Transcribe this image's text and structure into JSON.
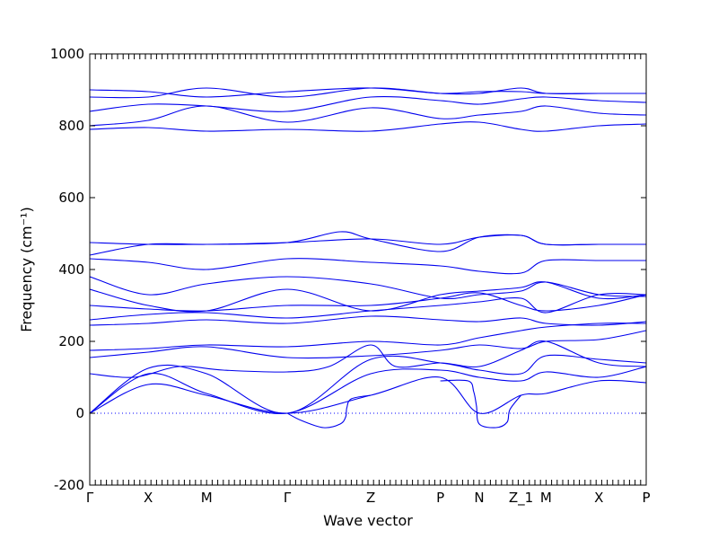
{
  "chart_data": {
    "type": "line",
    "xlabel": "Wave vector",
    "ylabel": "Frequency (cm⁻¹)",
    "ylim": [
      -200,
      1000
    ],
    "xlim": [
      0,
      10
    ],
    "yticks": [
      -200,
      0,
      200,
      400,
      600,
      800,
      1000
    ],
    "high_symmetry_points": [
      {
        "label": "Γ",
        "x": 0.0
      },
      {
        "label": "X",
        "x": 1.05
      },
      {
        "label": "M",
        "x": 2.1
      },
      {
        "label": "Γ",
        "x": 3.55
      },
      {
        "label": "Z",
        "x": 5.05
      },
      {
        "label": "P",
        "x": 6.3
      },
      {
        "label": "N",
        "x": 7.0
      },
      {
        "label": "Z_1",
        "x": 7.75
      },
      {
        "label": "M",
        "x": 8.2
      },
      {
        "label": "X",
        "x": 9.15
      },
      {
        "label": "P",
        "x": 10.0
      }
    ],
    "zero_line": {
      "y": 0,
      "style": "dotted"
    },
    "series": [
      {
        "x": [
          0,
          1.05,
          2.1,
          3.55,
          5.05,
          6.3,
          7.0,
          7.75,
          8.2,
          9.15,
          10
        ],
        "y": [
          0,
          80,
          50,
          0,
          50,
          100,
          0,
          50,
          55,
          90,
          85
        ]
      },
      {
        "x": [
          0,
          1.05,
          2.1,
          3.55,
          5.05,
          6.3,
          7.0,
          7.75,
          8.2,
          9.15,
          10
        ],
        "y": [
          0,
          110,
          55,
          0,
          110,
          120,
          100,
          90,
          115,
          100,
          130
        ]
      },
      {
        "x": [
          0,
          1.05,
          2.1,
          3.55,
          5.05,
          6.3,
          7.0,
          7.75,
          8.2,
          9.15,
          10
        ],
        "y": [
          0,
          125,
          110,
          0,
          150,
          140,
          120,
          110,
          160,
          150,
          140
        ]
      },
      {
        "x": [
          0,
          0.8,
          1.6,
          2.4,
          3.55,
          4.3,
          5.05,
          5.5,
          6.3,
          7.0,
          7.75,
          8.2,
          9.15,
          10
        ],
        "y": [
          110,
          100,
          130,
          120,
          115,
          130,
          190,
          130,
          140,
          130,
          175,
          200,
          140,
          130
        ]
      },
      {
        "x": [
          0,
          1.05,
          2.1,
          3.55,
          5.05,
          6.3,
          7.0,
          7.75,
          8.2,
          9.15,
          10
        ],
        "y": [
          155,
          170,
          185,
          155,
          160,
          175,
          190,
          180,
          200,
          205,
          230
        ]
      },
      {
        "x": [
          0,
          1.05,
          2.1,
          3.55,
          5.05,
          6.3,
          7.0,
          7.75,
          8.2,
          9.15,
          10
        ],
        "y": [
          175,
          180,
          190,
          185,
          200,
          190,
          210,
          230,
          240,
          250,
          250
        ]
      },
      {
        "x": [
          0,
          1.05,
          2.1,
          3.55,
          5.05,
          6.3,
          7.0,
          7.75,
          8.2,
          9.15,
          10
        ],
        "y": [
          245,
          250,
          260,
          250,
          270,
          260,
          255,
          265,
          250,
          245,
          255
        ]
      },
      {
        "x": [
          0,
          1.05,
          2.1,
          3.55,
          5.05,
          6.3,
          7.0,
          7.75,
          8.2,
          9.15,
          10
        ],
        "y": [
          260,
          275,
          280,
          265,
          285,
          300,
          310,
          320,
          280,
          330,
          330
        ]
      },
      {
        "x": [
          0,
          1.05,
          2.1,
          3.55,
          5.05,
          6.3,
          7.0,
          7.75,
          8.2,
          9.15,
          10
        ],
        "y": [
          300,
          290,
          285,
          300,
          300,
          320,
          335,
          300,
          285,
          300,
          330
        ]
      },
      {
        "x": [
          0,
          1.05,
          2.1,
          3.55,
          5.05,
          6.3,
          7.0,
          7.75,
          8.2,
          9.15,
          10
        ],
        "y": [
          345,
          300,
          285,
          345,
          285,
          330,
          340,
          350,
          365,
          320,
          330
        ]
      },
      {
        "x": [
          0,
          1.05,
          2.1,
          3.55,
          5.05,
          6.3,
          7.0,
          7.75,
          8.2,
          9.15,
          10
        ],
        "y": [
          380,
          330,
          360,
          380,
          360,
          320,
          330,
          340,
          365,
          330,
          325
        ]
      },
      {
        "x": [
          0,
          1.05,
          2.1,
          3.55,
          5.05,
          6.3,
          7.0,
          7.75,
          8.2,
          9.15,
          10
        ],
        "y": [
          430,
          420,
          400,
          430,
          420,
          410,
          395,
          390,
          425,
          425,
          425
        ]
      },
      {
        "x": [
          0,
          1.05,
          2.1,
          3.55,
          5.05,
          6.3,
          7.0,
          7.75,
          8.2,
          9.15,
          10
        ],
        "y": [
          475,
          470,
          470,
          475,
          485,
          470,
          490,
          495,
          470,
          470,
          470
        ]
      },
      {
        "x": [
          0,
          1.05,
          2.1,
          3.55,
          4.5,
          5.05,
          6.3,
          7.0,
          7.75,
          8.2,
          9.15,
          10
        ],
        "y": [
          440,
          470,
          470,
          475,
          505,
          485,
          450,
          490,
          495,
          470,
          470,
          470
        ]
      },
      {
        "x": [
          0,
          1.05,
          2.1,
          3.55,
          5.05,
          6.3,
          7.0,
          7.75,
          8.2,
          9.15,
          10
        ],
        "y": [
          790,
          795,
          785,
          790,
          785,
          805,
          810,
          790,
          785,
          800,
          805
        ]
      },
      {
        "x": [
          0,
          1.05,
          2.1,
          3.55,
          5.05,
          6.3,
          7.0,
          7.75,
          8.2,
          9.15,
          10
        ],
        "y": [
          800,
          815,
          855,
          810,
          850,
          820,
          830,
          840,
          855,
          835,
          830
        ]
      },
      {
        "x": [
          0,
          1.05,
          2.1,
          3.55,
          5.05,
          6.3,
          7.0,
          7.75,
          8.2,
          9.15,
          10
        ],
        "y": [
          840,
          860,
          855,
          840,
          880,
          870,
          860,
          875,
          880,
          870,
          865
        ]
      },
      {
        "x": [
          0,
          1.05,
          2.1,
          3.55,
          5.05,
          6.3,
          7.0,
          7.75,
          8.2,
          9.15,
          10
        ],
        "y": [
          880,
          880,
          905,
          880,
          905,
          890,
          890,
          905,
          890,
          890,
          890
        ]
      },
      {
        "x": [
          0,
          1.05,
          2.1,
          3.55,
          5.05,
          6.3,
          7.0,
          7.75,
          8.2,
          9.15,
          10
        ],
        "y": [
          900,
          895,
          880,
          895,
          905,
          890,
          895,
          895,
          890,
          890,
          890
        ]
      },
      {
        "x": [
          3.55,
          3.8,
          4.2,
          4.5,
          4.6,
          4.62,
          4.7,
          5.05
        ],
        "y": [
          0,
          -20,
          -40,
          -30,
          -10,
          15,
          40,
          50
        ]
      },
      {
        "x": [
          6.3,
          6.8,
          6.9,
          6.95,
          7.0,
          7.3,
          7.5,
          7.55,
          7.75
        ],
        "y": [
          90,
          90,
          60,
          20,
          -30,
          -40,
          -25,
          10,
          50
        ]
      }
    ]
  }
}
